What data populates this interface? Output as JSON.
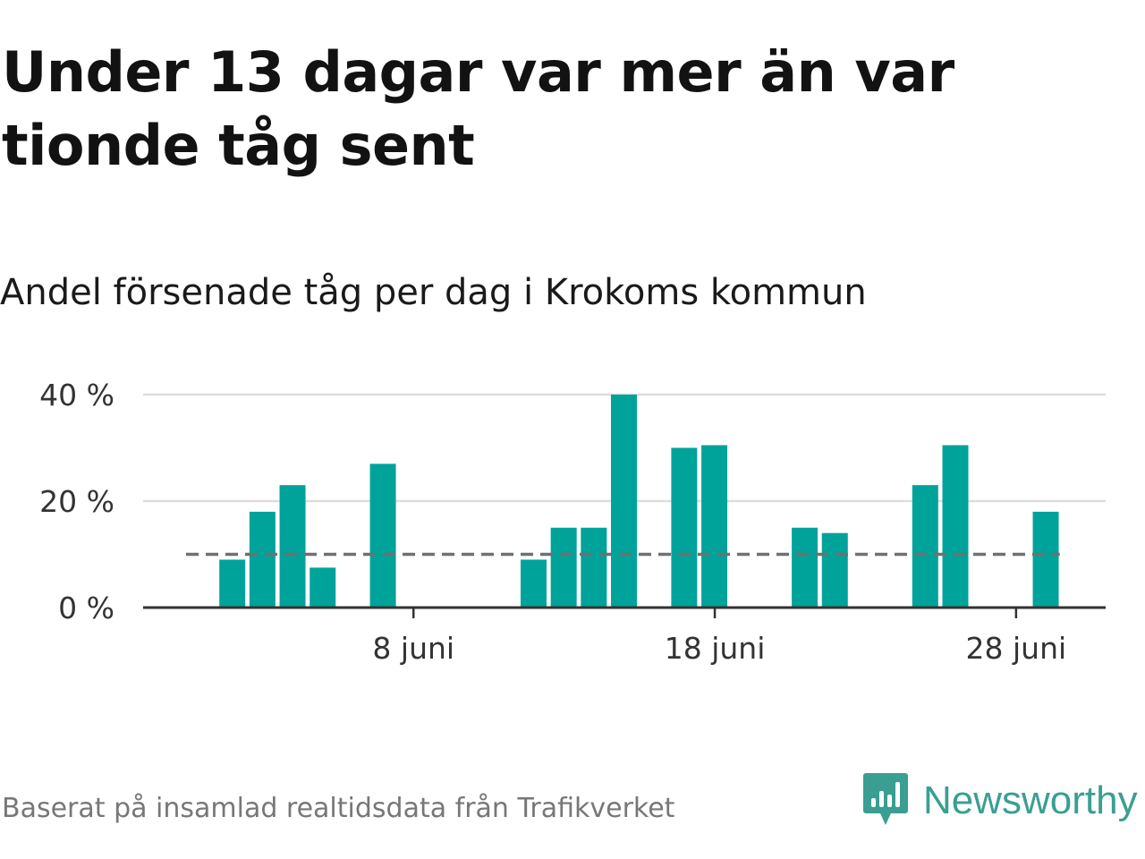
{
  "header": {
    "title": "Under 13 dagar var mer än var tionde tåg sent",
    "subtitle": "Andel försenade tåg per dag i Krokoms kommun"
  },
  "footer": {
    "source": "Baserat på insamlad realtidsdata från Trafikverket",
    "brand": "Newsworthy"
  },
  "colors": {
    "bar": "#00a39a",
    "reference_line": "#707070",
    "gridline": "#dddddd",
    "axis": "#333333",
    "brand": "#3a9f92"
  },
  "icons": {
    "brand_logo": "bar-chart-speech-bubble-icon"
  },
  "chart_data": {
    "type": "bar",
    "x_start": "2023-06-01",
    "x_end": "2023-06-30",
    "x": [
      "2023-06-01",
      "2023-06-02",
      "2023-06-03",
      "2023-06-04",
      "2023-06-05",
      "2023-06-06",
      "2023-06-07",
      "2023-06-08",
      "2023-06-09",
      "2023-06-10",
      "2023-06-11",
      "2023-06-12",
      "2023-06-13",
      "2023-06-14",
      "2023-06-15",
      "2023-06-16",
      "2023-06-17",
      "2023-06-18",
      "2023-06-19",
      "2023-06-20",
      "2023-06-21",
      "2023-06-22",
      "2023-06-23",
      "2023-06-24",
      "2023-06-25",
      "2023-06-26",
      "2023-06-27",
      "2023-06-28",
      "2023-06-29",
      "2023-06-30"
    ],
    "values": [
      null,
      9,
      18,
      23,
      7.5,
      null,
      27,
      null,
      null,
      null,
      null,
      9,
      15,
      15,
      40,
      null,
      30,
      30.5,
      null,
      null,
      15,
      14,
      null,
      null,
      23,
      30.5,
      null,
      null,
      18,
      null
    ],
    "reference_line": 10,
    "ylim": [
      0,
      40
    ],
    "y_ticks": [
      0,
      20,
      40
    ],
    "y_tick_labels": [
      "0 %",
      "20 %",
      "40 %"
    ],
    "x_ticks": [
      "2023-06-08",
      "2023-06-18",
      "2023-06-28"
    ],
    "x_tick_labels": [
      "8 juni",
      "18 juni",
      "28 juni"
    ],
    "grid": true,
    "xlabel": "",
    "ylabel": ""
  }
}
